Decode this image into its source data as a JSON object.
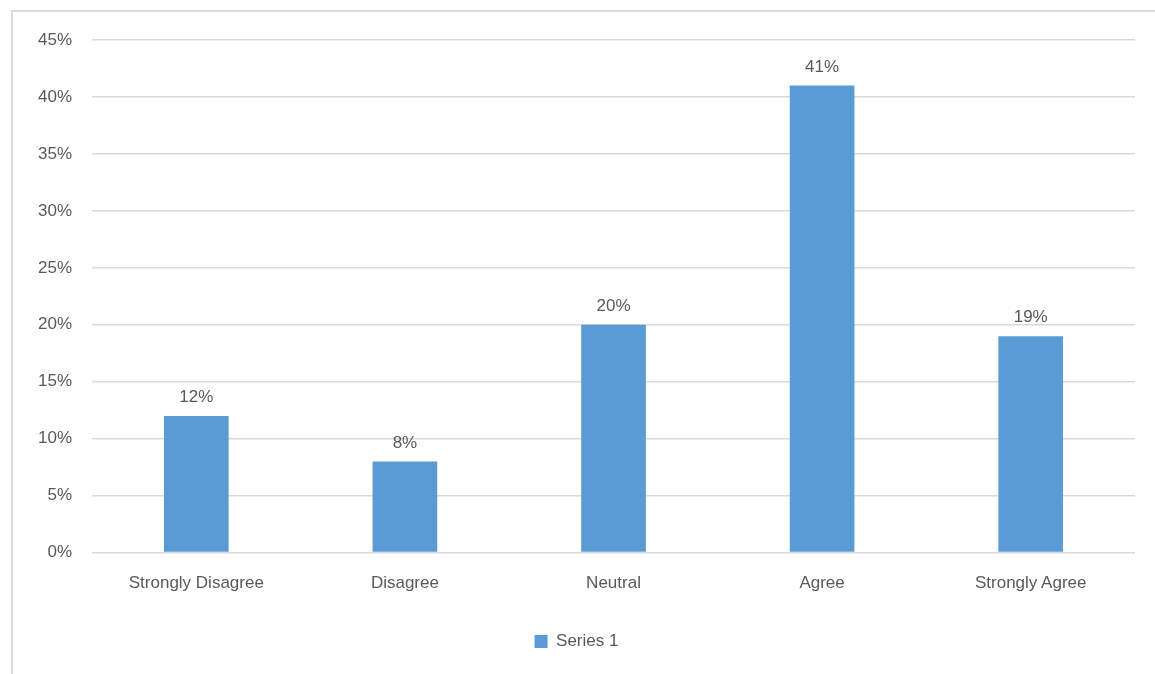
{
  "chart_data": {
    "type": "bar",
    "categories": [
      "Strongly Disagree",
      "Disagree",
      "Neutral",
      "Agree",
      "Strongly Agree"
    ],
    "series": [
      {
        "name": "Series 1",
        "color": "#5b9bd5",
        "values": [
          12,
          8,
          20,
          41,
          19
        ],
        "value_labels": [
          "12%",
          "8%",
          "20%",
          "41%",
          "19%"
        ]
      }
    ],
    "ylim": [
      0,
      45
    ],
    "yticks": [
      {
        "value": 0,
        "label": "0%"
      },
      {
        "value": 5,
        "label": "5%"
      },
      {
        "value": 10,
        "label": "10%"
      },
      {
        "value": 15,
        "label": "15%"
      },
      {
        "value": 20,
        "label": "20%"
      },
      {
        "value": 25,
        "label": "25%"
      },
      {
        "value": 30,
        "label": "30%"
      },
      {
        "value": 35,
        "label": "35%"
      },
      {
        "value": 40,
        "label": "40%"
      },
      {
        "value": 45,
        "label": "45%"
      }
    ],
    "grid": "y",
    "legend": "bottom"
  }
}
